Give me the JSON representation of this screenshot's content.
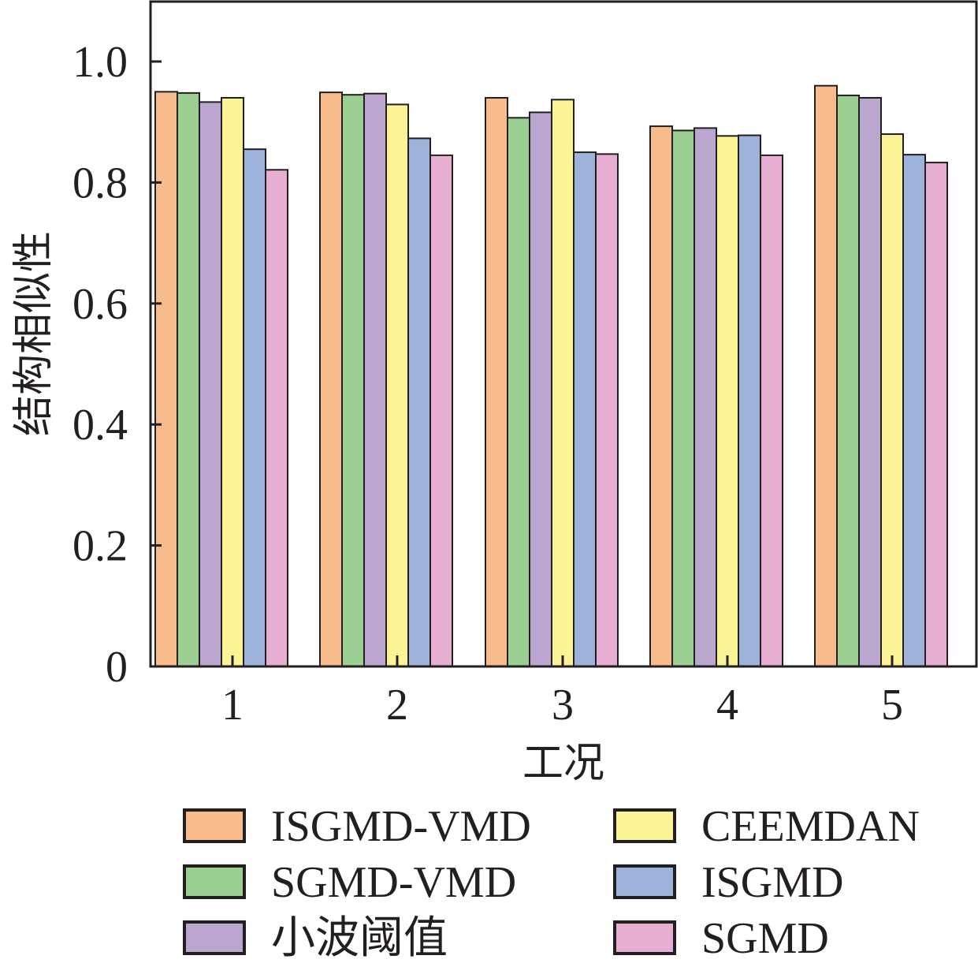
{
  "chart_data": {
    "type": "bar",
    "title": "",
    "xlabel": "工况",
    "ylabel": "结构相似性",
    "categories": [
      "1",
      "2",
      "3",
      "4",
      "5"
    ],
    "ylim": [
      0,
      1.1
    ],
    "yticks": [
      0,
      0.2,
      0.4,
      0.6,
      0.8,
      1.0
    ],
    "ytick_labels": [
      "0",
      "0.2",
      "0.4",
      "0.6",
      "0.8",
      "1.0"
    ],
    "legend_position": "bottom",
    "series": [
      {
        "name": "ISGMD-VMD",
        "color": "#f8bb8c",
        "values": [
          0.95,
          0.949,
          0.94,
          0.893,
          0.96
        ]
      },
      {
        "name": "SGMD-VMD",
        "color": "#9bcf92",
        "values": [
          0.948,
          0.945,
          0.907,
          0.886,
          0.944
        ]
      },
      {
        "name": "小波阈值",
        "color": "#bba6d0",
        "values": [
          0.933,
          0.947,
          0.916,
          0.89,
          0.94
        ]
      },
      {
        "name": "CEEMDAN",
        "color": "#faf497",
        "values": [
          0.94,
          0.929,
          0.937,
          0.877,
          0.88
        ]
      },
      {
        "name": "ISGMD",
        "color": "#9eb3d9",
        "values": [
          0.855,
          0.873,
          0.85,
          0.878,
          0.846
        ]
      },
      {
        "name": "SGMD",
        "color": "#e6aed0",
        "values": [
          0.821,
          0.845,
          0.847,
          0.845,
          0.833
        ]
      }
    ]
  }
}
